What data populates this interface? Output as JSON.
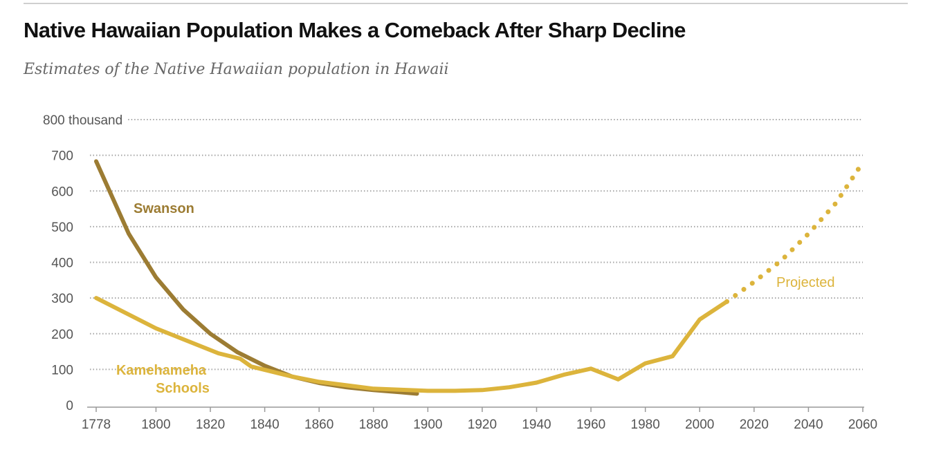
{
  "colors": {
    "swanson": "#9c7c33",
    "kamehameha": "#dcb43c",
    "grid": "#a5a5a5",
    "axis": "#999999"
  },
  "chart_data": {
    "type": "line",
    "title": "Native Hawaiian Population Makes a Comeback After Sharp Decline",
    "subtitle": "Estimates of the Native Hawaiian population in Hawaii",
    "y_unit_label": "800 thousand",
    "ylim": [
      0,
      800
    ],
    "y_ticks": [
      "0",
      "100",
      "200",
      "300",
      "400",
      "500",
      "600",
      "700"
    ],
    "x_ticks": [
      "1778",
      "1800",
      "1820",
      "1840",
      "1860",
      "1880",
      "1900",
      "1920",
      "1940",
      "1960",
      "1980",
      "2000",
      "2020",
      "2040",
      "2060"
    ],
    "grid": true,
    "series": [
      {
        "name": "Swanson",
        "style": "solid",
        "points": [
          [
            1778,
            683
          ],
          [
            1790,
            480
          ],
          [
            1800,
            358
          ],
          [
            1810,
            268
          ],
          [
            1820,
            200
          ],
          [
            1830,
            148
          ],
          [
            1840,
            110
          ],
          [
            1850,
            80
          ],
          [
            1860,
            62
          ],
          [
            1870,
            50
          ],
          [
            1880,
            42
          ],
          [
            1890,
            36
          ],
          [
            1896,
            32
          ]
        ]
      },
      {
        "name": "Kamehameha Schools",
        "style": "solid",
        "points": [
          [
            1778,
            300
          ],
          [
            1800,
            215
          ],
          [
            1823,
            145
          ],
          [
            1831,
            130
          ],
          [
            1835,
            108
          ],
          [
            1850,
            80
          ],
          [
            1860,
            65
          ],
          [
            1880,
            46
          ],
          [
            1900,
            40
          ],
          [
            1910,
            40
          ],
          [
            1920,
            42
          ],
          [
            1930,
            50
          ],
          [
            1940,
            63
          ],
          [
            1950,
            85
          ],
          [
            1960,
            102
          ],
          [
            1970,
            72
          ],
          [
            1980,
            117
          ],
          [
            1990,
            137
          ],
          [
            2000,
            240
          ],
          [
            2010,
            290
          ]
        ]
      },
      {
        "name": "Projected",
        "style": "dotted",
        "points": [
          [
            2010,
            290
          ],
          [
            2020,
            345
          ],
          [
            2030,
            405
          ],
          [
            2040,
            480
          ],
          [
            2050,
            565
          ],
          [
            2060,
            680
          ]
        ]
      }
    ]
  }
}
